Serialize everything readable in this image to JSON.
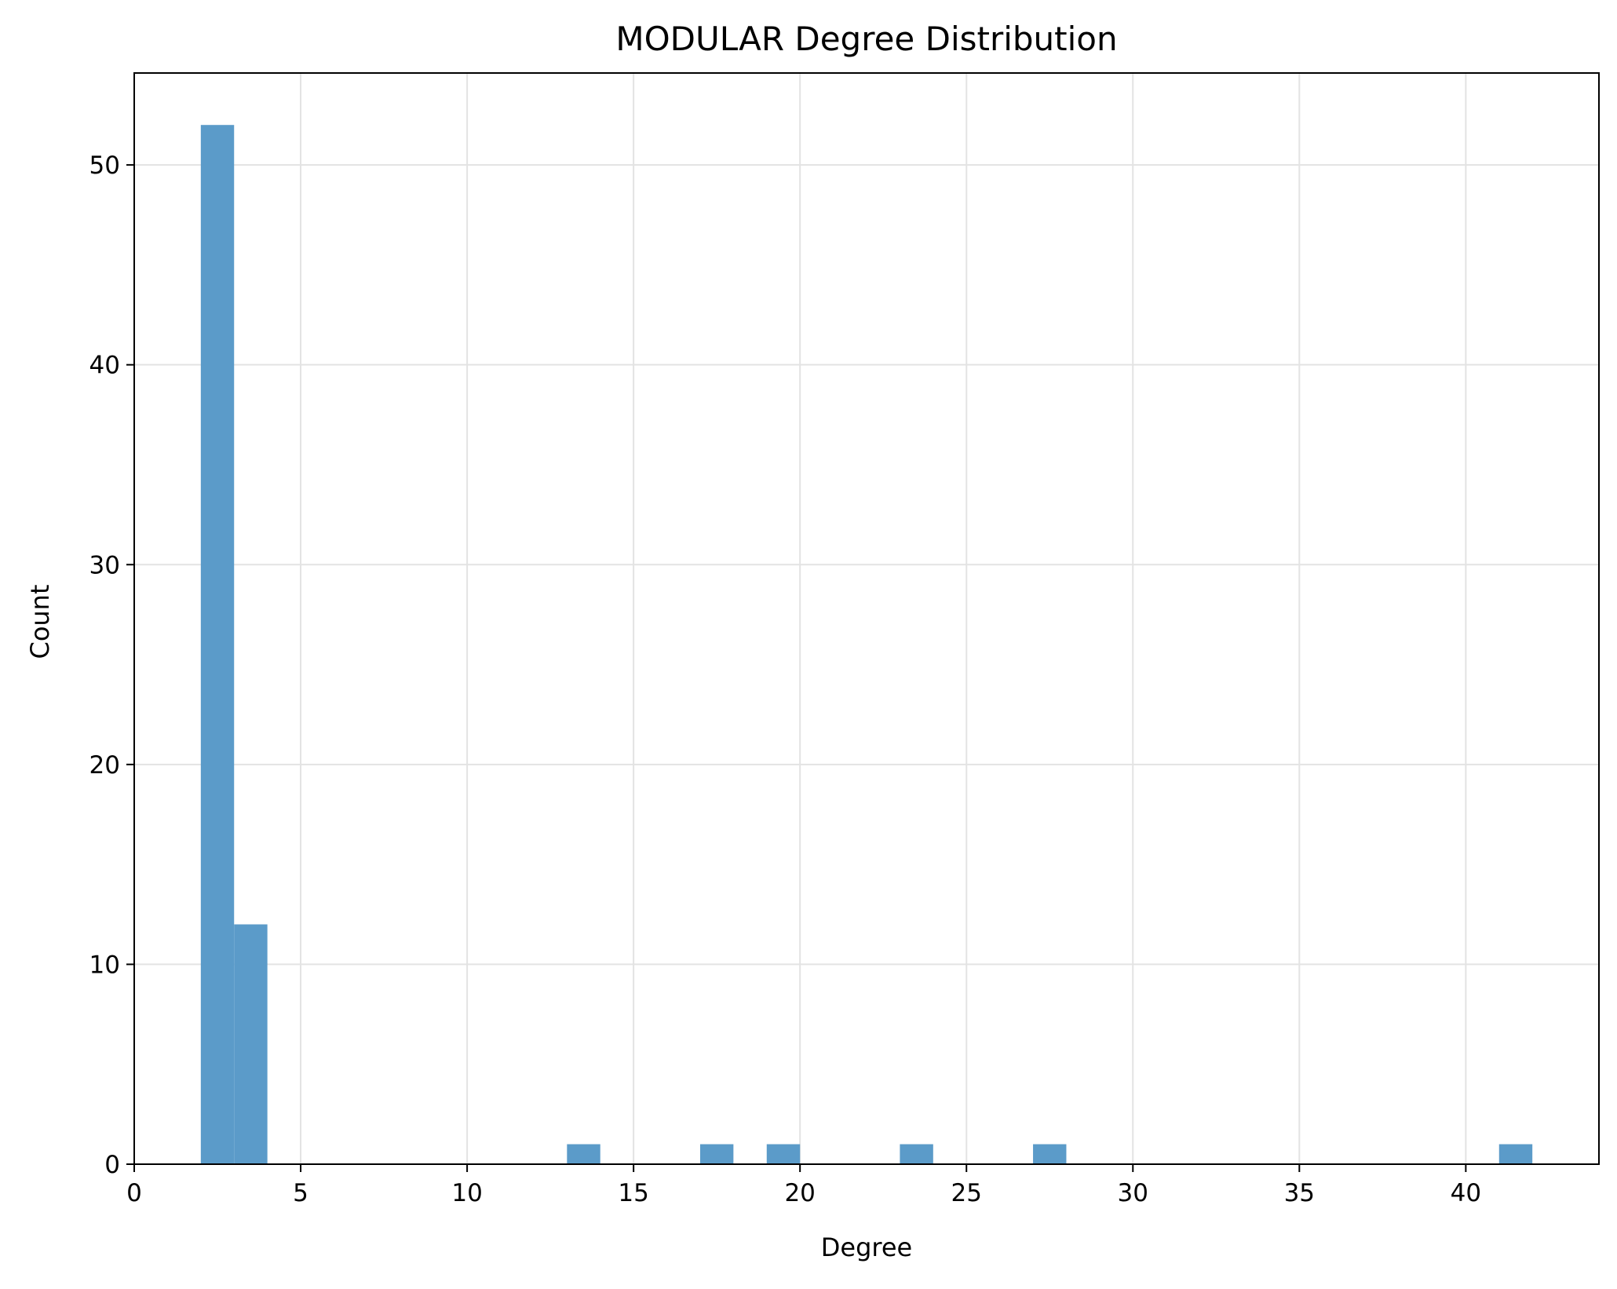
{
  "chart_data": {
    "type": "bar",
    "title": "MODULAR Degree Distribution",
    "xlabel": "Degree",
    "ylabel": "Count",
    "xlim": [
      0,
      44
    ],
    "ylim": [
      0,
      54.6
    ],
    "xticks": [
      0,
      5,
      10,
      15,
      20,
      25,
      30,
      35,
      40
    ],
    "yticks": [
      0,
      10,
      20,
      30,
      40,
      50
    ],
    "grid": true,
    "bar_color": "#5b9bc9",
    "bars": [
      {
        "x0": 2,
        "x1": 3,
        "value": 52
      },
      {
        "x0": 3,
        "x1": 4,
        "value": 12
      },
      {
        "x0": 13,
        "x1": 14,
        "value": 1
      },
      {
        "x0": 17,
        "x1": 18,
        "value": 1
      },
      {
        "x0": 19,
        "x1": 20,
        "value": 1
      },
      {
        "x0": 23,
        "x1": 24,
        "value": 1
      },
      {
        "x0": 27,
        "x1": 28,
        "value": 1
      },
      {
        "x0": 41,
        "x1": 42,
        "value": 1
      }
    ]
  }
}
